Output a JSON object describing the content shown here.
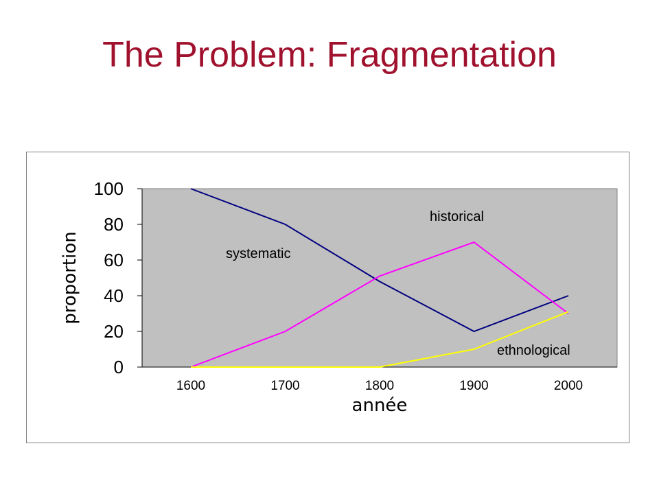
{
  "slide": {
    "title": "The Problem: Fragmentation"
  },
  "chart_data": {
    "type": "line",
    "x": [
      1600,
      1700,
      1800,
      1900,
      2000
    ],
    "categories": [
      "1600",
      "1700",
      "1800",
      "1900",
      "2000"
    ],
    "xlabel": "année",
    "ylabel": "proportion",
    "ylim": [
      0,
      100
    ],
    "yticks": [
      "0",
      "20",
      "40",
      "60",
      "80",
      "100"
    ],
    "grid": false,
    "plot_background": "#c0c0c0",
    "series": [
      {
        "name": "systematic",
        "values": [
          100,
          80,
          48,
          20,
          40
        ],
        "color": "#000080"
      },
      {
        "name": "historical",
        "values": [
          0,
          20,
          51,
          70,
          30
        ],
        "color": "#ff00ff"
      },
      {
        "name": "ethnological",
        "values": [
          0,
          0,
          0,
          10,
          31
        ],
        "color": "#ffff00"
      }
    ],
    "annotations": [
      "systematic",
      "historical",
      "ethnological"
    ]
  }
}
